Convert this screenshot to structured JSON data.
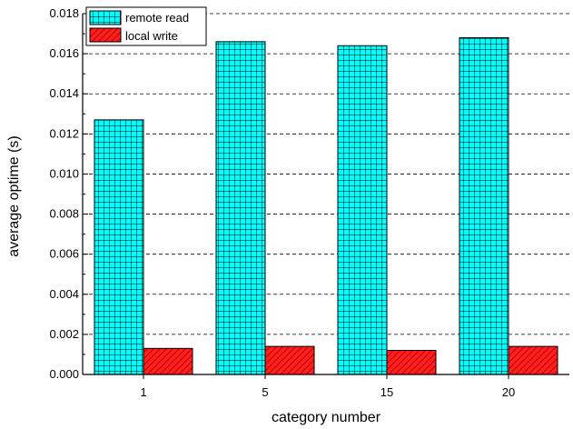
{
  "chart_data": {
    "type": "bar",
    "xlabel": "category number",
    "ylabel": "average optime (s)",
    "categories": [
      "1",
      "5",
      "15",
      "20"
    ],
    "series": [
      {
        "name": "remote read",
        "values": [
          0.0127,
          0.0166,
          0.0164,
          0.0168
        ],
        "color": "#00ffff",
        "pattern": "grid"
      },
      {
        "name": "local write",
        "values": [
          0.0013,
          0.0014,
          0.0012,
          0.0014
        ],
        "color": "#ff0000",
        "pattern": "diagonal"
      }
    ],
    "ylim": [
      0,
      0.018
    ],
    "yticks": [
      "0.000",
      "0.002",
      "0.004",
      "0.006",
      "0.008",
      "0.010",
      "0.012",
      "0.014",
      "0.016",
      "0.018"
    ],
    "grid": "horizontal dashed",
    "legend": "top-left"
  }
}
